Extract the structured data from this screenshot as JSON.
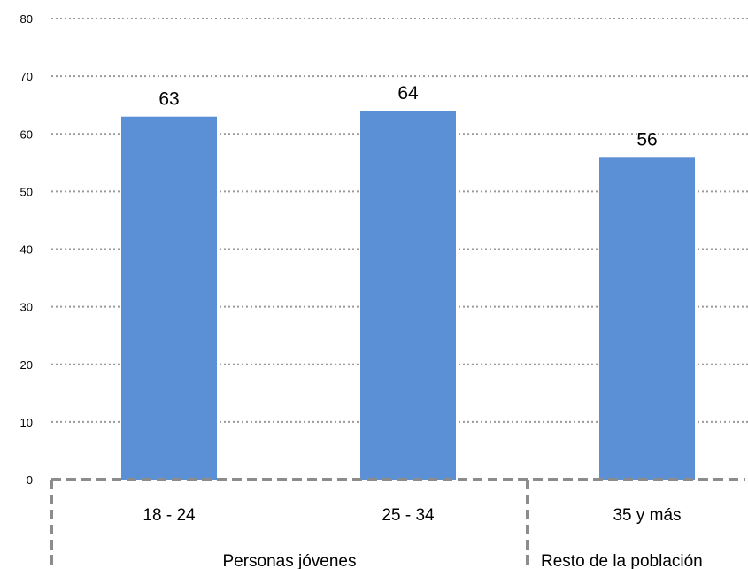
{
  "chart_data": {
    "type": "bar",
    "title": "",
    "xlabel": "",
    "ylabel": "",
    "ylim": [
      0,
      80
    ],
    "ytick_step": 10,
    "grid": true,
    "grid_style": "dotted",
    "bar_color": "#5B8FD6",
    "grid_color": "#9a9a9a",
    "group_border_color": "#8c8c8c",
    "categories": [
      "18 - 24",
      "25 - 34",
      "35 y más"
    ],
    "values": [
      63,
      64,
      56
    ],
    "data_labels": [
      "63",
      "64",
      "56"
    ],
    "category_groups": [
      {
        "label": "Personas jóvenes",
        "categories": [
          "18 - 24",
          "25 - 34"
        ]
      },
      {
        "label": "Resto de la población",
        "categories": [
          "35 y más"
        ]
      }
    ]
  }
}
